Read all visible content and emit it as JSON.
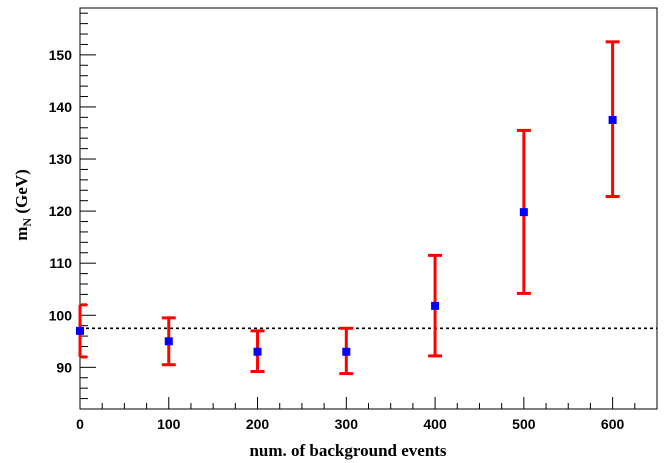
{
  "chart_data": {
    "type": "scatter",
    "title": "",
    "xlabel": "num. of background events",
    "ylabel": {
      "main": "m",
      "sub": "N",
      "units": " (GeV)"
    },
    "xlim": [
      0,
      650
    ],
    "ylim": [
      82,
      159
    ],
    "xticks": [
      0,
      100,
      200,
      300,
      400,
      500,
      600
    ],
    "yticks": [
      90,
      100,
      110,
      120,
      130,
      140,
      150
    ],
    "grid": false,
    "reference_line": {
      "y": 97.5,
      "style": "dotted"
    },
    "series": [
      {
        "marker_color": "#0000ff",
        "errorbar_color": "#ff0000",
        "points": [
          {
            "x": 0,
            "y": 97.0,
            "ylow": 92.0,
            "yhigh": 102.0
          },
          {
            "x": 100,
            "y": 95.0,
            "ylow": 90.5,
            "yhigh": 99.5
          },
          {
            "x": 200,
            "y": 93.0,
            "ylow": 89.2,
            "yhigh": 97.0
          },
          {
            "x": 300,
            "y": 93.0,
            "ylow": 88.8,
            "yhigh": 97.5
          },
          {
            "x": 400,
            "y": 101.8,
            "ylow": 92.2,
            "yhigh": 111.5
          },
          {
            "x": 500,
            "y": 119.8,
            "ylow": 104.2,
            "yhigh": 135.5
          },
          {
            "x": 600,
            "y": 137.5,
            "ylow": 122.8,
            "yhigh": 152.5
          }
        ]
      }
    ]
  }
}
